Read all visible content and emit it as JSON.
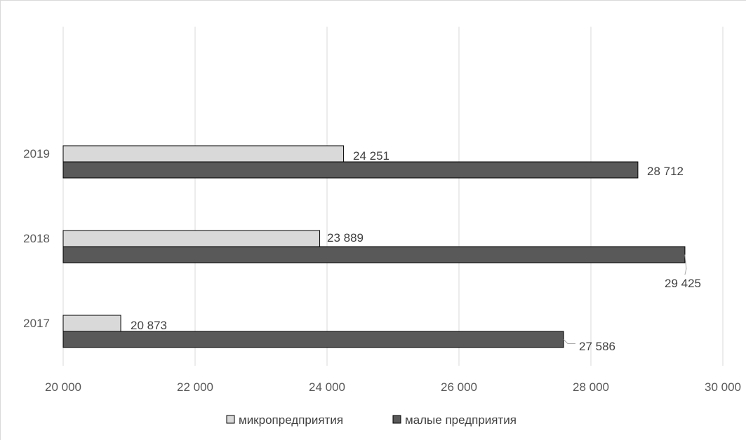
{
  "chart_data": {
    "type": "bar",
    "orientation": "horizontal",
    "categories": [
      "2017",
      "2018",
      "2019"
    ],
    "series": [
      {
        "name": "микропредприятия",
        "color": "#d9d9d9",
        "values": [
          20873,
          23889,
          24251
        ],
        "labels": [
          "20 873",
          "23 889",
          "24 251"
        ]
      },
      {
        "name": "малые предприятия",
        "color": "#595959",
        "values": [
          27586,
          29425,
          28712
        ],
        "labels": [
          "27 586",
          "29 425",
          "28 712"
        ]
      }
    ],
    "xlim": [
      20000,
      30000
    ],
    "xticks": [
      20000,
      22000,
      24000,
      26000,
      28000,
      30000
    ],
    "xtick_labels": [
      "20 000",
      "22 000",
      "24 000",
      "26 000",
      "28 000",
      "30 000"
    ],
    "grid": true,
    "legend_position": "bottom",
    "title": "",
    "xlabel": "",
    "ylabel": ""
  }
}
